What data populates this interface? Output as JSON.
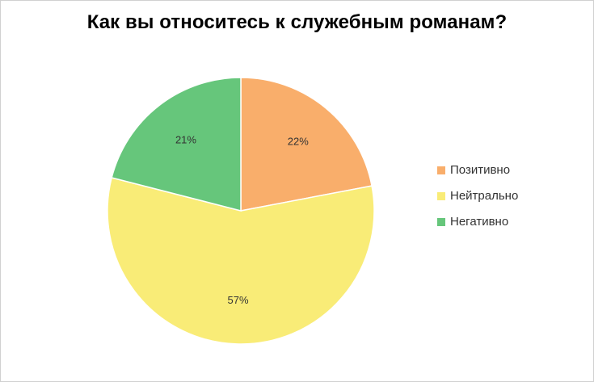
{
  "chart_data": {
    "type": "pie",
    "title": "Как вы относитесь к служебным романам?",
    "categories": [
      "Позитивно",
      "Нейтрально",
      "Негативно"
    ],
    "values": [
      22,
      57,
      21
    ],
    "labels": [
      "22%",
      "57%",
      "21%"
    ],
    "colors": [
      "#f9ae6b",
      "#f9ec77",
      "#66c67b"
    ],
    "start_angle_deg": 0,
    "direction": "clockwise",
    "legend": "right"
  }
}
